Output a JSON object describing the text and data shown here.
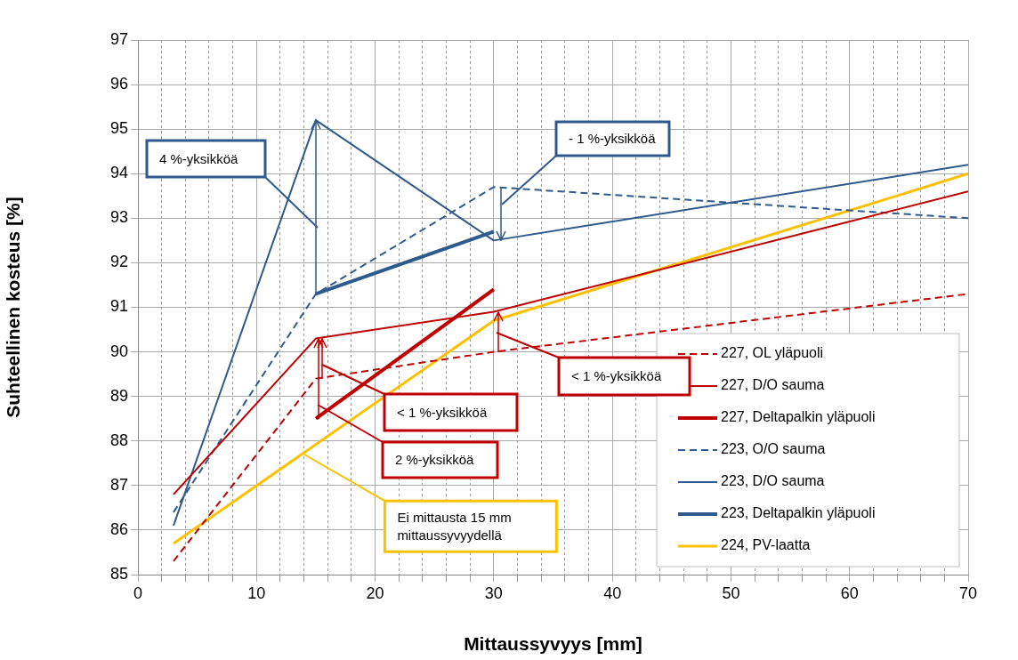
{
  "chart_data": {
    "type": "line",
    "xlabel": "Mittaussyvyys [mm]",
    "ylabel": "Suhteellinen kosteus [%]",
    "xlim": [
      0,
      70
    ],
    "ylim": [
      85,
      97
    ],
    "xticks": [
      0,
      {
        "value": 2,
        "label": null
      },
      {
        "value": 4,
        "label": null
      },
      {
        "value": 6,
        "label": null
      },
      {
        "value": 8,
        "label": null
      },
      10,
      {
        "value": 12,
        "label": null
      },
      {
        "value": 14,
        "label": null
      },
      {
        "value": 16,
        "label": null
      },
      {
        "value": 18,
        "label": null
      },
      20,
      {
        "value": 22,
        "label": null
      },
      {
        "value": 24,
        "label": null
      },
      {
        "value": 26,
        "label": null
      },
      {
        "value": 28,
        "label": null
      },
      30,
      {
        "value": 32,
        "label": null
      },
      {
        "value": 34,
        "label": null
      },
      {
        "value": 36,
        "label": null
      },
      {
        "value": 38,
        "label": null
      },
      40,
      {
        "value": 42,
        "label": null
      },
      {
        "value": 44,
        "label": null
      },
      {
        "value": 46,
        "label": null
      },
      {
        "value": 48,
        "label": null
      },
      50,
      {
        "value": 52,
        "label": null
      },
      {
        "value": 54,
        "label": null
      },
      {
        "value": 56,
        "label": null
      },
      {
        "value": 58,
        "label": null
      },
      60,
      {
        "value": 62,
        "label": null
      },
      {
        "value": 64,
        "label": null
      },
      {
        "value": 66,
        "label": null
      },
      {
        "value": 68,
        "label": null
      },
      70
    ],
    "yticks": [
      85,
      86,
      87,
      88,
      89,
      90,
      91,
      92,
      93,
      94,
      95,
      96,
      97
    ],
    "grid": true,
    "legend": "bottom right",
    "marker": "none",
    "series": [
      {
        "name": "227, OL yläpuoli",
        "color": "#c00000",
        "line_style": "dashed",
        "x": [
          3,
          15,
          30,
          70
        ],
        "values": [
          85.3,
          89.4,
          90.0,
          91.3
        ]
      },
      {
        "name": "227, D/O sauma",
        "color": "#c00000",
        "line_style": "solid",
        "x": [
          3,
          15,
          30,
          70
        ],
        "values": [
          86.8,
          90.3,
          90.9,
          93.6
        ]
      },
      {
        "name": "227, Deltapalkin yläpuoli",
        "color": "#c00000",
        "line_style": "solid",
        "x": [
          15,
          30
        ],
        "values": [
          88.5,
          91.4
        ]
      },
      {
        "name": "223, O/O sauma",
        "color": "#2e5a8e",
        "line_style": "dashed",
        "x": [
          3,
          15,
          30,
          70
        ],
        "values": [
          86.4,
          91.3,
          93.7,
          93.0
        ]
      },
      {
        "name": "223, D/O sauma",
        "color": "#2e5a8e",
        "line_style": "solid",
        "x": [
          3,
          15,
          30,
          70
        ],
        "values": [
          86.1,
          95.2,
          92.5,
          94.2
        ]
      },
      {
        "name": "223, Deltapalkin yläpuoli",
        "color": "#2e5a8e",
        "line_style": "solid",
        "x": [
          15,
          30
        ],
        "values": [
          91.3,
          92.7
        ]
      },
      {
        "name": "224, PV-laatta",
        "color": "#ffc000",
        "line_style": "solid",
        "x": [
          3,
          30,
          70
        ],
        "values": [
          85.7,
          90.7,
          94.0
        ]
      }
    ],
    "annotations": [
      "4 %-yksikköä",
      "- 1 %-yksikköä",
      "< 1 %-yksikköä",
      "2 %-yksikköä",
      "< 1 %-yksikköä",
      {
        "text": "Ei mittausta 15 mm\nmittaussyvyydellä",
        "x": 14,
        "y": 87.7
      }
    ]
  }
}
